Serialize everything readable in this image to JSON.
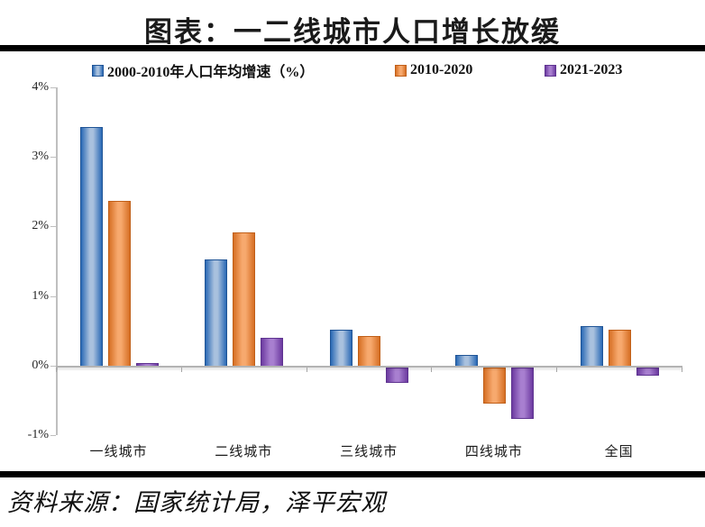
{
  "header": {
    "title": "图表：一二线城市人口增长放缓"
  },
  "footer": {
    "source": "资料来源：国家统计局，泽平宏观"
  },
  "chart_data": {
    "type": "bar",
    "title": "图表：一二线城市人口增长放缓",
    "categories": [
      "一线城市",
      "二线城市",
      "三线城市",
      "四线城市",
      "全国"
    ],
    "series": [
      {
        "name": "2000-2010年人口年均增速（%）",
        "values": [
          3.43,
          1.53,
          0.52,
          0.16,
          0.57
        ],
        "color_dark": "#2A69B5",
        "color_light": "#A9C1DE",
        "border": "#1F5496"
      },
      {
        "name": "2010-2020",
        "values": [
          2.37,
          1.91,
          0.43,
          -0.49,
          0.52
        ],
        "color_dark": "#D66F24",
        "color_light": "#F7A96E",
        "border": "#C05F18"
      },
      {
        "name": "2021-2023",
        "values": [
          0.04,
          0.4,
          -0.2,
          -0.71,
          -0.09
        ],
        "color_dark": "#6C3AA0",
        "color_light": "#A87FD0",
        "border": "#5E3390"
      }
    ],
    "ylabel": "",
    "xlabel": "",
    "ylim": [
      -1,
      4
    ],
    "yticks": [
      4,
      3,
      2,
      1,
      0,
      -1
    ],
    "ytick_suffix": "%",
    "grid": false,
    "legend_position": "top"
  }
}
